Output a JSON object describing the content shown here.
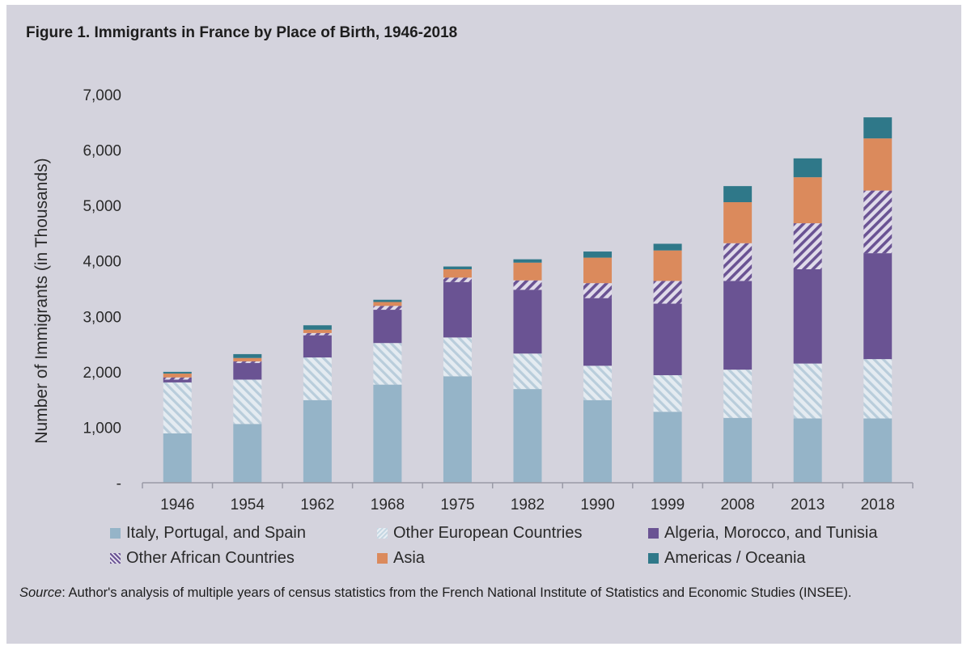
{
  "figure": {
    "title": "Figure 1. Immigrants in France by Place of Birth, 1946-2018",
    "source_label": "Source",
    "source_text": ": Author's analysis of multiple years of census statistics from the French National Institute of Statistics and Economic Studies (INSEE)."
  },
  "colors": {
    "panel_bg": "#d4d3dd",
    "italy_portugal_spain": "#95b4c8",
    "other_european_hatch": "#c5d7e3",
    "algeria_morocco_tunisia": "#6a5393",
    "other_african_hatch": "#6a5393",
    "asia": "#db8a5c",
    "americas_oceania": "#2f7889"
  },
  "chart_data": {
    "type": "bar",
    "stacked": true,
    "title": "Figure 1. Immigrants in France by Place of Birth, 1946-2018",
    "xlabel": "",
    "ylabel": "Number of Immigrants (in Thousands)",
    "ylim": [
      0,
      7000
    ],
    "yticks": [
      0,
      1000,
      2000,
      3000,
      4000,
      5000,
      6000,
      7000
    ],
    "ytick_labels": [
      "-",
      "1,000",
      "2,000",
      "3,000",
      "4,000",
      "5,000",
      "6,000",
      "7,000"
    ],
    "grid": false,
    "legend_position": "bottom",
    "categories": [
      "1946",
      "1954",
      "1962",
      "1968",
      "1975",
      "1982",
      "1990",
      "1999",
      "2008",
      "2013",
      "2018"
    ],
    "series": [
      {
        "name": "Italy, Portugal, and Spain",
        "pattern": "solid",
        "values": [
          890,
          1060,
          1490,
          1770,
          1920,
          1690,
          1490,
          1280,
          1170,
          1160,
          1160
        ]
      },
      {
        "name": "Other European Countries",
        "pattern": "hatch-light",
        "values": [
          920,
          800,
          770,
          750,
          700,
          640,
          620,
          660,
          870,
          990,
          1070
        ]
      },
      {
        "name": "Algeria, Morocco, and Tunisia",
        "pattern": "solid",
        "values": [
          50,
          300,
          400,
          600,
          1000,
          1150,
          1220,
          1290,
          1600,
          1700,
          1910
        ]
      },
      {
        "name": "Other African Countries",
        "pattern": "hatch-dark",
        "values": [
          40,
          30,
          40,
          70,
          80,
          170,
          270,
          410,
          680,
          830,
          1130
        ]
      },
      {
        "name": "Asia",
        "pattern": "solid",
        "values": [
          70,
          60,
          60,
          70,
          150,
          320,
          460,
          550,
          740,
          830,
          940
        ]
      },
      {
        "name": "Americas / Oceania",
        "pattern": "solid",
        "values": [
          30,
          70,
          80,
          40,
          50,
          60,
          110,
          120,
          290,
          340,
          380
        ]
      }
    ]
  }
}
